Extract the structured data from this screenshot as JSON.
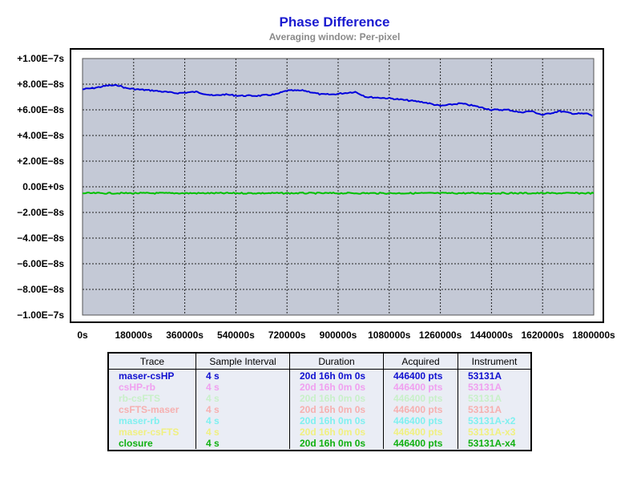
{
  "chart_data": {
    "type": "line",
    "title": "Phase Difference",
    "subtitle": "Averaging window: Per-pixel",
    "xlabel": "",
    "ylabel": "",
    "x_unit": "s",
    "y_unit": "s",
    "xlim": [
      0,
      1800000
    ],
    "ylim": [
      -1e-07,
      1e-07
    ],
    "grid": true,
    "x_tick_labels": [
      "0s",
      "180000s",
      "360000s",
      "540000s",
      "720000s",
      "900000s",
      "1080000s",
      "1260000s",
      "1440000s",
      "1620000s",
      "1800000s"
    ],
    "y_tick_labels": [
      "+1.00E−7s",
      "+8.00E−8s",
      "+6.00E−8s",
      "+4.00E−8s",
      "+2.00E−8s",
      "0.00E+0s",
      "−2.00E−8s",
      "−4.00E−8s",
      "−6.00E−8s",
      "−8.00E−8s",
      "−1.00E−7s"
    ],
    "series": [
      {
        "name": "maser-csHP",
        "color": "#0000dd",
        "x": [
          0,
          40000,
          90000,
          130000,
          150000,
          190000,
          250000,
          330000,
          400000,
          460000,
          500000,
          550000,
          620000,
          680000,
          720000,
          780000,
          840000,
          880000,
          960000,
          1000000,
          1080000,
          1120000,
          1200000,
          1260000,
          1330000,
          1380000,
          1440000,
          1500000,
          1540000,
          1580000,
          1620000,
          1680000,
          1730000,
          1780000,
          1795000
        ],
        "values": [
          7.6e-08,
          7.7e-08,
          7.9e-08,
          7.9e-08,
          7.7e-08,
          7.6e-08,
          7.5e-08,
          7.3e-08,
          7.4e-08,
          7.1e-08,
          7.2e-08,
          7.1e-08,
          7.1e-08,
          7.2e-08,
          7.5e-08,
          7.5e-08,
          7.2e-08,
          7.2e-08,
          7.4e-08,
          7e-08,
          6.9e-08,
          6.8e-08,
          6.6e-08,
          6.3e-08,
          6.5e-08,
          6.3e-08,
          6e-08,
          6e-08,
          5.8e-08,
          5.9e-08,
          5.6e-08,
          5.9e-08,
          5.7e-08,
          5.7e-08,
          5.5e-08
        ]
      },
      {
        "name": "closure",
        "color": "#00c000",
        "x": [
          0,
          300000,
          600000,
          900000,
          1200000,
          1500000,
          1800000
        ],
        "values": [
          -5e-09,
          -5e-09,
          -5e-09,
          -5e-09,
          -5e-09,
          -5e-09,
          -5e-09
        ]
      }
    ]
  },
  "legend": {
    "headers": [
      "Trace",
      "Sample Interval",
      "Duration",
      "Acquired",
      "Instrument"
    ],
    "rows": [
      {
        "trace": "maser-csHP",
        "interval": "4 s",
        "duration": "20d 16h 0m 0s",
        "acquired": "446400 pts",
        "instrument": "53131A",
        "color": "#1010d0"
      },
      {
        "trace": "csHP-rb",
        "interval": "4 s",
        "duration": "20d 16h 0m 0s",
        "acquired": "446400 pts",
        "instrument": "53131A",
        "color": "#f0a0f0"
      },
      {
        "trace": "rb-csFTS",
        "interval": "4 s",
        "duration": "20d 16h 0m 0s",
        "acquired": "446400 pts",
        "instrument": "53131A",
        "color": "#c8f0c8"
      },
      {
        "trace": "csFTS-maser",
        "interval": "4 s",
        "duration": "20d 16h 0m 0s",
        "acquired": "446400 pts",
        "instrument": "53131A",
        "color": "#f6b0b0"
      },
      {
        "trace": "maser-rb",
        "interval": "4 s",
        "duration": "20d 16h 0m 0s",
        "acquired": "446400 pts",
        "instrument": "53131A-x2",
        "color": "#80f0f0"
      },
      {
        "trace": "maser-csFTS",
        "interval": "4 s",
        "duration": "20d 16h 0m 0s",
        "acquired": "446400 pts",
        "instrument": "53131A-x3",
        "color": "#f0f080"
      },
      {
        "trace": "closure",
        "interval": "4 s",
        "duration": "20d 16h 0m 0s",
        "acquired": "446400 pts",
        "instrument": "53131A-x4",
        "color": "#10b010"
      }
    ]
  }
}
